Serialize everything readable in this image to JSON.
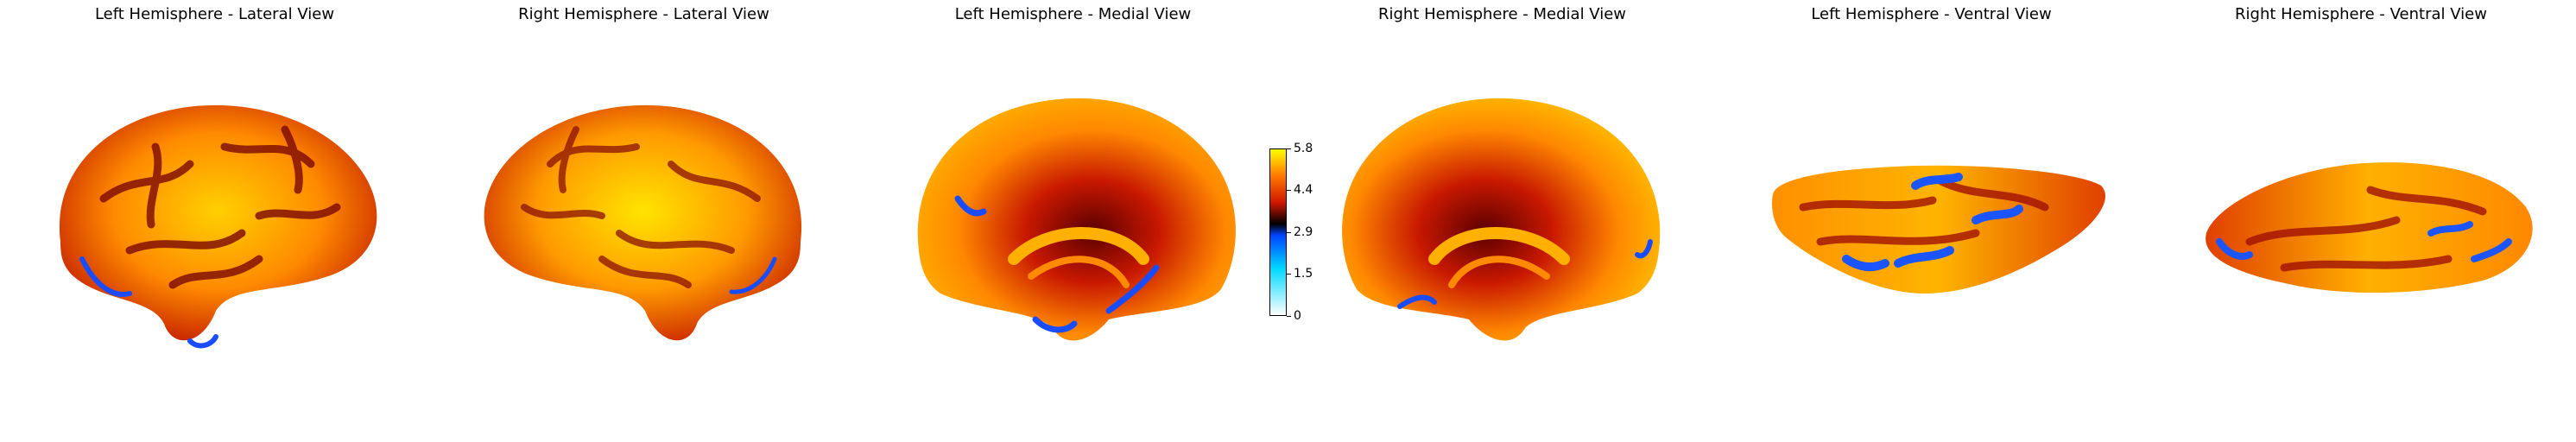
{
  "panels": [
    {
      "title": "Left Hemisphere - Lateral View"
    },
    {
      "title": "Right Hemisphere - Lateral View"
    },
    {
      "title": "Left Hemisphere - Medial View"
    },
    {
      "title": "Right Hemisphere - Medial View"
    },
    {
      "title": "Left Hemisphere - Ventral View"
    },
    {
      "title": "Right Hemisphere - Ventral View"
    }
  ],
  "colorbar": {
    "ticks": [
      "5.8",
      "4.4",
      "2.9",
      "1.5",
      "0"
    ],
    "colormap": [
      "#ffffff",
      "#00d8ff",
      "#0044ff",
      "#000000",
      "#d01800",
      "#ff7800",
      "#ffff00"
    ]
  }
}
